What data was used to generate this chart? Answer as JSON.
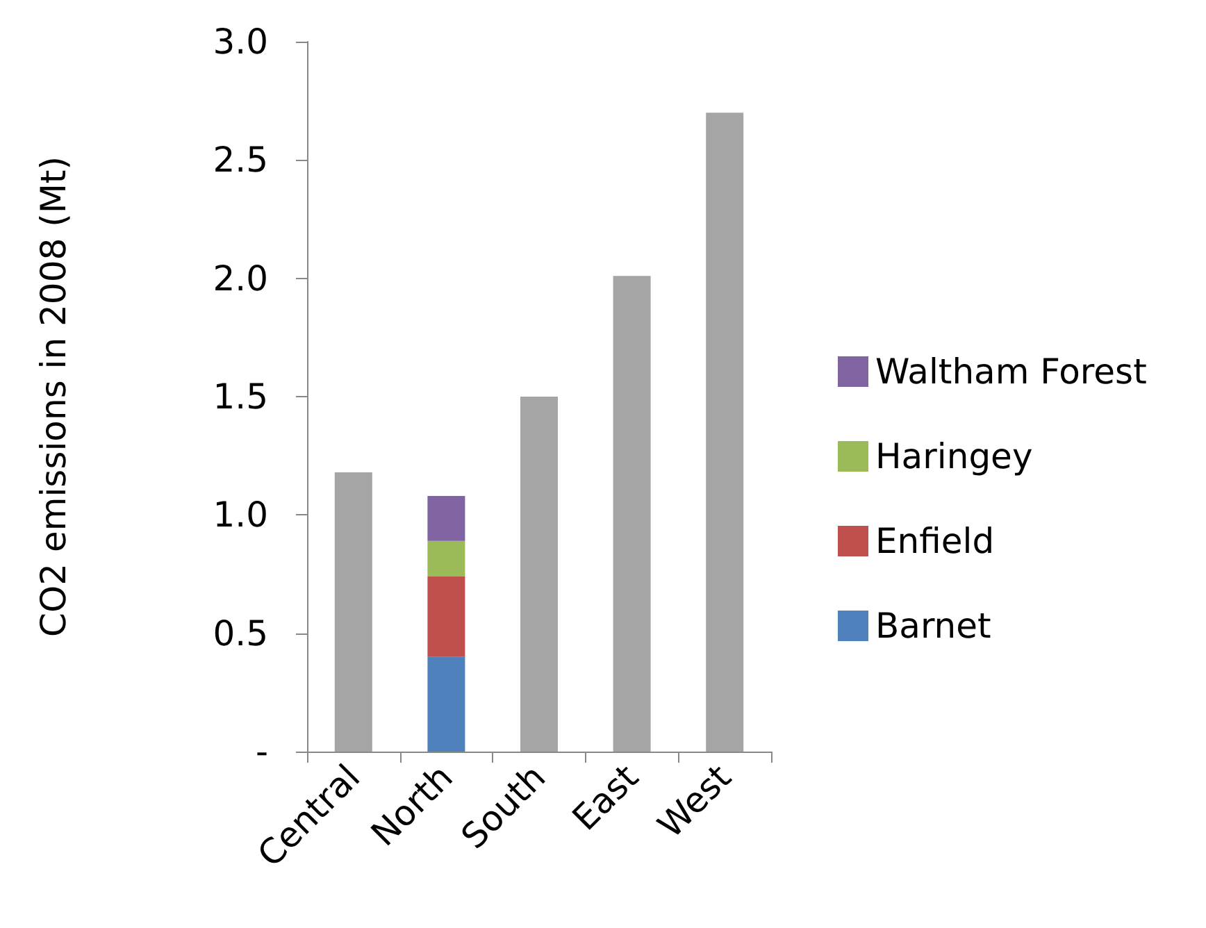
{
  "chart_data": {
    "type": "bar",
    "ylabel": "CO2 emissions in 2008 (Mt)",
    "categories": [
      "Central",
      "North",
      "South",
      "East",
      "West"
    ],
    "stacked": true,
    "series": [
      {
        "color": "#a5a5a5",
        "values": [
          1.18,
          null,
          1.5,
          2.01,
          2.7
        ]
      },
      {
        "name": "Barnet",
        "color": "#4f81bd",
        "values": [
          null,
          0.4,
          null,
          null,
          null
        ]
      },
      {
        "name": "Enfield",
        "color": "#c0504d",
        "values": [
          null,
          0.34,
          null,
          null,
          null
        ]
      },
      {
        "name": "Haringey",
        "color": "#9bbb59",
        "values": [
          null,
          0.15,
          null,
          null,
          null
        ]
      },
      {
        "name": "Waltham Forest",
        "color": "#8064a2",
        "values": [
          null,
          0.19,
          null,
          null,
          null
        ]
      }
    ],
    "ylim": [
      0,
      3
    ],
    "yticks": [
      {
        "value": 0,
        "label": "-"
      },
      {
        "value": 0.5,
        "label": "0.5"
      },
      {
        "value": 1,
        "label": "1.0"
      },
      {
        "value": 1.5,
        "label": "1.5"
      },
      {
        "value": 2,
        "label": "2.0"
      },
      {
        "value": 2.5,
        "label": "2.5"
      },
      {
        "value": 3,
        "label": "3.0"
      }
    ],
    "grid": false,
    "legend": "right"
  }
}
